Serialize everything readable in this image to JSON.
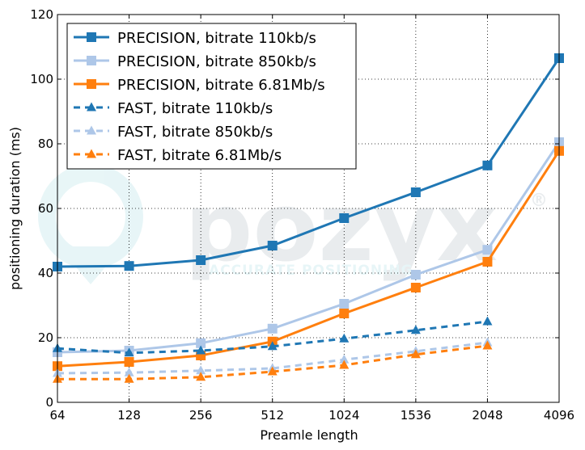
{
  "chart_data": {
    "type": "line",
    "xlabel": "Preamle length",
    "ylabel": "positioning duration (ms)",
    "categories": [
      "64",
      "128",
      "256",
      "512",
      "1024",
      "1536",
      "2048",
      "4096"
    ],
    "ylim": [
      0,
      120
    ],
    "yticks": [
      "0",
      "20",
      "40",
      "60",
      "80",
      "100",
      "120"
    ],
    "grid": true,
    "legend_position": "top-left",
    "series": [
      {
        "name": "PRECISION, bitrate 110kb/s",
        "color": "#1f77b4",
        "style": "solid",
        "marker": "square",
        "values": [
          42,
          42.2,
          44,
          48.5,
          57,
          65,
          73.3,
          106.5
        ]
      },
      {
        "name": "PRECISION, bitrate 850kb/s",
        "color": "#aec7e8",
        "style": "solid",
        "marker": "square",
        "values": [
          15.5,
          16,
          18.3,
          22.8,
          30.5,
          39.5,
          47.2,
          80.5
        ]
      },
      {
        "name": "PRECISION, bitrate 6.81Mb/s",
        "color": "#ff7f0e",
        "style": "solid",
        "marker": "square",
        "values": [
          11.2,
          12.5,
          14.5,
          18.8,
          27.5,
          35.5,
          43.5,
          77.8
        ]
      },
      {
        "name": "FAST, bitrate 110kb/s",
        "color": "#1f77b4",
        "style": "dashed",
        "marker": "triangle",
        "values": [
          16.7,
          15.3,
          16,
          17.3,
          19.7,
          22.3,
          25,
          null
        ]
      },
      {
        "name": "FAST, bitrate 850kb/s",
        "color": "#aec7e8",
        "style": "dashed",
        "marker": "triangle",
        "values": [
          9,
          9.2,
          9.8,
          10.5,
          13.2,
          15.8,
          18.5,
          null
        ]
      },
      {
        "name": "FAST, bitrate 6.81Mb/s",
        "color": "#ff7f0e",
        "style": "dashed",
        "marker": "triangle",
        "values": [
          7.2,
          7.2,
          7.8,
          9.5,
          11.5,
          14.8,
          17.5,
          null
        ]
      }
    ]
  },
  "watermark": {
    "brand": "pozyx",
    "tagline": "ACCURATE POSITIONING",
    "registered": "®"
  }
}
